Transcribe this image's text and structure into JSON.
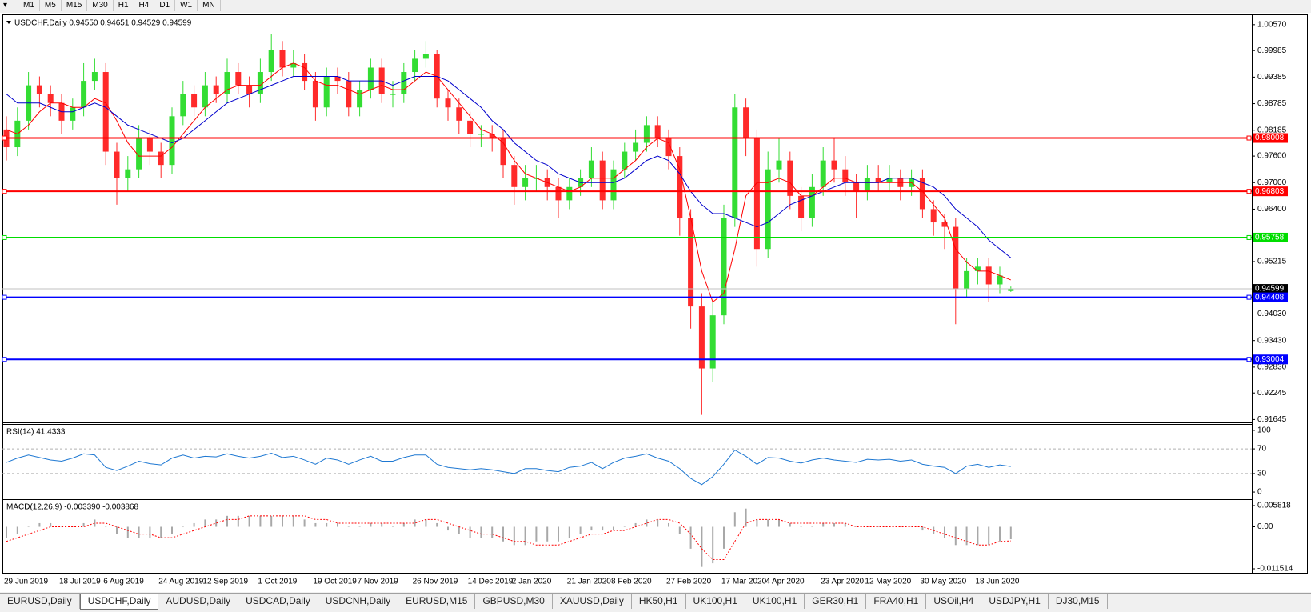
{
  "toolbar": {
    "timeframes": [
      "M1",
      "M5",
      "M15",
      "M30",
      "H1",
      "H4",
      "D1",
      "W1",
      "MN"
    ]
  },
  "chart_data": [
    {
      "type": "candlestick",
      "title": "USDCHF,Daily  0.94550 0.94651 0.94529 0.94599",
      "categories": [
        "29 Jun 2019",
        null,
        null,
        null,
        null,
        "18 Jul 2019",
        null,
        null,
        null,
        "6 Aug 2019",
        null,
        null,
        null,
        null,
        "24 Aug 2019",
        null,
        null,
        null,
        "12 Sep 2019",
        null,
        null,
        null,
        null,
        "1 Oct 2019",
        null,
        null,
        null,
        null,
        "19 Oct 2019",
        null,
        null,
        null,
        "7 Nov 2019",
        null,
        null,
        null,
        null,
        "26 Nov 2019",
        null,
        null,
        null,
        null,
        "14 Dec 2019",
        null,
        null,
        null,
        "2 Jan 2020",
        null,
        null,
        null,
        null,
        "21 Jan 2020",
        null,
        null,
        null,
        "8 Feb 2020",
        null,
        null,
        null,
        null,
        "27 Feb 2020",
        null,
        null,
        null,
        null,
        "17 Mar 2020",
        null,
        null,
        null,
        "4 Apr 2020",
        null,
        null,
        null,
        null,
        "23 Apr 2020",
        null,
        null,
        null,
        "12 May 2020",
        null,
        null,
        null,
        null,
        "30 May 2020",
        null,
        null,
        null,
        null,
        "18 Jun 2020",
        null,
        null,
        null
      ],
      "open": [
        0.982,
        0.978,
        0.984,
        0.992,
        0.99,
        0.988,
        0.984,
        0.987,
        0.993,
        0.995,
        0.977,
        0.971,
        0.973,
        0.98,
        0.977,
        0.974,
        0.985,
        0.99,
        0.987,
        0.992,
        0.99,
        0.995,
        0.992,
        0.99,
        0.995,
        1.0,
        0.996,
        0.997,
        0.993,
        0.987,
        0.994,
        0.993,
        0.987,
        0.991,
        0.996,
        0.99,
        0.99,
        0.995,
        0.998,
        0.999,
        0.989,
        0.987,
        0.984,
        0.981,
        0.981,
        0.98,
        0.974,
        0.969,
        0.971,
        0.971,
        0.969,
        0.966,
        0.969,
        0.971,
        0.975,
        0.966,
        0.973,
        0.977,
        0.979,
        0.983,
        0.98,
        0.976,
        0.962,
        0.942,
        0.928,
        0.94,
        0.962,
        0.987,
        0.98,
        0.955,
        0.973,
        0.975,
        0.967,
        0.962,
        0.969,
        0.975,
        0.973,
        0.97,
        0.968,
        0.971,
        0.97,
        0.971,
        0.969,
        0.971,
        0.964,
        0.961,
        0.96,
        0.946,
        0.95,
        0.951,
        0.947,
        0.9455
      ],
      "high": [
        0.985,
        0.987,
        0.995,
        0.994,
        0.992,
        0.99,
        0.989,
        0.997,
        0.998,
        0.997,
        0.979,
        0.976,
        0.983,
        0.982,
        0.979,
        0.987,
        0.993,
        0.992,
        0.995,
        0.994,
        0.998,
        0.997,
        0.994,
        0.998,
        1.0035,
        1.002,
        1.0,
        0.999,
        0.995,
        0.996,
        0.996,
        0.995,
        0.993,
        0.998,
        0.998,
        0.993,
        0.997,
        1.0,
        1.002,
        1.0,
        0.991,
        0.989,
        0.986,
        0.983,
        0.983,
        0.982,
        0.976,
        0.974,
        0.974,
        0.973,
        0.971,
        0.971,
        0.973,
        0.978,
        0.977,
        0.975,
        0.979,
        0.982,
        0.985,
        0.985,
        0.982,
        0.978,
        0.964,
        0.945,
        0.943,
        0.965,
        0.99,
        0.989,
        0.982,
        0.977,
        0.98,
        0.977,
        0.969,
        0.972,
        0.978,
        0.98,
        0.976,
        0.972,
        0.974,
        0.974,
        0.974,
        0.973,
        0.973,
        0.973,
        0.966,
        0.963,
        0.962,
        0.953,
        0.953,
        0.953,
        0.951,
        0.94651
      ],
      "low": [
        0.975,
        0.976,
        0.982,
        0.987,
        0.985,
        0.981,
        0.982,
        0.985,
        0.991,
        0.974,
        0.965,
        0.968,
        0.971,
        0.974,
        0.971,
        0.972,
        0.983,
        0.985,
        0.985,
        0.988,
        0.988,
        0.99,
        0.987,
        0.988,
        0.993,
        0.994,
        0.994,
        0.991,
        0.984,
        0.985,
        0.99,
        0.985,
        0.985,
        0.989,
        0.988,
        0.987,
        0.988,
        0.993,
        0.996,
        0.987,
        0.984,
        0.981,
        0.978,
        0.978,
        0.977,
        0.971,
        0.965,
        0.966,
        0.968,
        0.966,
        0.962,
        0.964,
        0.967,
        0.969,
        0.964,
        0.964,
        0.971,
        0.975,
        0.977,
        0.978,
        0.973,
        0.958,
        0.937,
        0.9175,
        0.925,
        0.938,
        0.96,
        0.976,
        0.951,
        0.953,
        0.97,
        0.964,
        0.959,
        0.96,
        0.967,
        0.97,
        0.967,
        0.962,
        0.966,
        0.968,
        0.968,
        0.966,
        0.967,
        0.962,
        0.958,
        0.955,
        0.938,
        0.944,
        0.947,
        0.943,
        0.945,
        0.94529
      ],
      "close": [
        0.978,
        0.984,
        0.992,
        0.99,
        0.988,
        0.984,
        0.987,
        0.993,
        0.995,
        0.977,
        0.971,
        0.973,
        0.98,
        0.977,
        0.974,
        0.985,
        0.99,
        0.987,
        0.992,
        0.99,
        0.995,
        0.992,
        0.99,
        0.995,
        1.0,
        0.996,
        0.997,
        0.993,
        0.987,
        0.994,
        0.993,
        0.987,
        0.991,
        0.996,
        0.99,
        0.99,
        0.995,
        0.998,
        0.999,
        0.989,
        0.987,
        0.984,
        0.981,
        0.981,
        0.98,
        0.974,
        0.969,
        0.971,
        0.971,
        0.969,
        0.966,
        0.969,
        0.971,
        0.975,
        0.966,
        0.973,
        0.977,
        0.979,
        0.983,
        0.98,
        0.976,
        0.962,
        0.942,
        0.928,
        0.94,
        0.962,
        0.987,
        0.98,
        0.955,
        0.973,
        0.975,
        0.967,
        0.962,
        0.969,
        0.975,
        0.973,
        0.97,
        0.968,
        0.971,
        0.97,
        0.971,
        0.969,
        0.971,
        0.964,
        0.961,
        0.96,
        0.946,
        0.95,
        0.951,
        0.947,
        0.949,
        0.94599
      ],
      "up_color": "#33dd33",
      "down_color": "#ff2a2a",
      "ma": [
        {
          "color": "#ff0000",
          "values": [
            0.982,
            0.981,
            0.983,
            0.986,
            0.988,
            0.988,
            0.987,
            0.987,
            0.989,
            0.988,
            0.984,
            0.979,
            0.976,
            0.976,
            0.976,
            0.978,
            0.981,
            0.984,
            0.987,
            0.989,
            0.991,
            0.992,
            0.992,
            0.992,
            0.994,
            0.996,
            0.997,
            0.996,
            0.993,
            0.992,
            0.992,
            0.991,
            0.99,
            0.991,
            0.992,
            0.991,
            0.991,
            0.993,
            0.995,
            0.994,
            0.991,
            0.988,
            0.985,
            0.982,
            0.981,
            0.979,
            0.975,
            0.972,
            0.971,
            0.97,
            0.969,
            0.968,
            0.969,
            0.971,
            0.971,
            0.971,
            0.973,
            0.975,
            0.978,
            0.98,
            0.979,
            0.973,
            0.962,
            0.95,
            0.943,
            0.945,
            0.955,
            0.967,
            0.97,
            0.97,
            0.971,
            0.97,
            0.967,
            0.967,
            0.969,
            0.971,
            0.971,
            0.97,
            0.97,
            0.97,
            0.97,
            0.97,
            0.97,
            0.968,
            0.965,
            0.962,
            0.955,
            0.952,
            0.95,
            0.95,
            0.949,
            0.948
          ]
        },
        {
          "color": "#0000cc",
          "values": [
            0.99,
            0.988,
            0.988,
            0.988,
            0.987,
            0.986,
            0.986,
            0.987,
            0.988,
            0.987,
            0.985,
            0.983,
            0.982,
            0.981,
            0.98,
            0.979,
            0.98,
            0.982,
            0.984,
            0.986,
            0.988,
            0.989,
            0.99,
            0.991,
            0.992,
            0.993,
            0.994,
            0.994,
            0.994,
            0.994,
            0.994,
            0.993,
            0.993,
            0.993,
            0.993,
            0.992,
            0.993,
            0.994,
            0.994,
            0.994,
            0.993,
            0.991,
            0.989,
            0.987,
            0.984,
            0.982,
            0.979,
            0.977,
            0.975,
            0.974,
            0.972,
            0.971,
            0.97,
            0.97,
            0.97,
            0.97,
            0.971,
            0.973,
            0.975,
            0.976,
            0.975,
            0.972,
            0.968,
            0.965,
            0.963,
            0.963,
            0.962,
            0.961,
            0.96,
            0.961,
            0.963,
            0.965,
            0.966,
            0.967,
            0.968,
            0.969,
            0.97,
            0.97,
            0.97,
            0.97,
            0.971,
            0.971,
            0.971,
            0.97,
            0.969,
            0.967,
            0.964,
            0.962,
            0.96,
            0.957,
            0.955,
            0.953
          ]
        }
      ],
      "hlines": [
        {
          "value": 0.98008,
          "color": "#ff0000"
        },
        {
          "value": 0.96803,
          "color": "#ff0000"
        },
        {
          "value": 0.95758,
          "color": "#00dd00"
        },
        {
          "value": 0.94408,
          "color": "#0000ff"
        },
        {
          "value": 0.93004,
          "color": "#0000ff"
        }
      ],
      "ylim": [
        0.9158,
        1.0073
      ],
      "yticks": [
        {
          "value": 1.0057,
          "label": "1.00570"
        },
        0.99985,
        0.99385,
        0.98785,
        0.98185,
        {
          "value": 0.976,
          "label": "0.97600"
        },
        {
          "value": 0.97,
          "label": "0.97000"
        },
        {
          "value": 0.964,
          "label": "0.96400"
        },
        0.95215,
        {
          "value": 0.9403,
          "label": "0.94030"
        },
        {
          "value": 0.9343,
          "label": "0.93430"
        },
        {
          "value": 0.9283,
          "label": "0.92830"
        },
        0.92245,
        0.91645
      ]
    },
    {
      "type": "line",
      "title": "RSI(14) 41.4333",
      "color": "#1e78d2",
      "values": [
        48,
        55,
        60,
        56,
        52,
        50,
        55,
        62,
        60,
        40,
        35,
        42,
        50,
        46,
        44,
        55,
        60,
        55,
        58,
        57,
        62,
        58,
        55,
        58,
        63,
        56,
        58,
        52,
        45,
        55,
        52,
        45,
        52,
        58,
        50,
        50,
        56,
        60,
        60,
        45,
        40,
        38,
        36,
        38,
        36,
        33,
        30,
        38,
        38,
        35,
        33,
        40,
        42,
        48,
        38,
        48,
        55,
        58,
        62,
        55,
        50,
        38,
        22,
        12,
        25,
        45,
        68,
        58,
        45,
        56,
        55,
        50,
        47,
        52,
        55,
        52,
        50,
        48,
        53,
        52,
        53,
        50,
        52,
        45,
        42,
        40,
        30,
        42,
        45,
        40,
        44,
        41.4333
      ],
      "levels": [
        30,
        70
      ],
      "ylim": [
        -9,
        109
      ],
      "yticks": [
        0,
        30,
        70,
        100
      ]
    },
    {
      "type": "macd",
      "title": "MACD(12,26,9) -0.003390 -0.003868",
      "color": "#a8a8a8",
      "values": [
        -0.003,
        -0.002,
        0.0,
        0.001,
        0.001,
        0.0,
        0.0,
        0.001,
        0.002,
        0.0,
        -0.002,
        -0.003,
        -0.003,
        -0.003,
        -0.003,
        -0.002,
        0.0,
        0.001,
        0.002,
        0.002,
        0.003,
        0.003,
        0.003,
        0.003,
        0.003,
        0.003,
        0.003,
        0.002,
        0.001,
        0.001,
        0.001,
        0.0,
        0.0,
        0.001,
        0.001,
        0.0,
        0.001,
        0.002,
        0.002,
        0.001,
        -0.001,
        -0.002,
        -0.003,
        -0.003,
        -0.003,
        -0.004,
        -0.005,
        -0.005,
        -0.004,
        -0.004,
        -0.004,
        -0.003,
        -0.002,
        -0.001,
        -0.001,
        -0.001,
        0.0,
        0.001,
        0.002,
        0.002,
        0.001,
        -0.002,
        -0.006,
        -0.011,
        -0.01,
        -0.006,
        0.004,
        0.005,
        0.002,
        0.002,
        0.002,
        0.001,
        0.0,
        0.0,
        0.001,
        0.001,
        0.001,
        0.0,
        0.0,
        0.0,
        0.0,
        0.0,
        0.0,
        -0.001,
        -0.002,
        -0.003,
        -0.005,
        -0.005,
        -0.005,
        -0.005,
        -0.004,
        -0.00339
      ],
      "signal": {
        "color": "#ff0000",
        "values": [
          -0.004,
          -0.003,
          -0.002,
          -0.001,
          0.0,
          0.0,
          0.0,
          0.0,
          0.001,
          0.001,
          0.0,
          -0.001,
          -0.002,
          -0.002,
          -0.003,
          -0.003,
          -0.002,
          -0.001,
          0.0,
          0.001,
          0.002,
          0.002,
          0.003,
          0.003,
          0.003,
          0.003,
          0.003,
          0.003,
          0.002,
          0.002,
          0.001,
          0.001,
          0.001,
          0.001,
          0.001,
          0.001,
          0.001,
          0.001,
          0.002,
          0.002,
          0.001,
          0.0,
          -0.001,
          -0.002,
          -0.002,
          -0.003,
          -0.004,
          -0.004,
          -0.005,
          -0.005,
          -0.005,
          -0.004,
          -0.003,
          -0.002,
          -0.002,
          -0.001,
          -0.001,
          0.0,
          0.001,
          0.002,
          0.002,
          0.001,
          -0.002,
          -0.006,
          -0.009,
          -0.009,
          -0.004,
          0.001,
          0.002,
          0.002,
          0.002,
          0.001,
          0.001,
          0.001,
          0.001,
          0.001,
          0.001,
          0.0,
          0.0,
          0.0,
          0.0,
          0.0,
          0.0,
          0.0,
          -0.001,
          -0.002,
          -0.003,
          -0.004,
          -0.005,
          -0.005,
          -0.004,
          -0.003868
        ]
      },
      "ylim": [
        -0.01261,
        0.00735
      ],
      "yticks": [
        0.005818,
        {
          "value": 0,
          "label": "0.00"
        },
        -0.011514
      ]
    }
  ],
  "tabs": {
    "items": [
      "EURUSD,Daily",
      "USDCHF,Daily",
      "AUDUSD,Daily",
      "USDCAD,Daily",
      "USDCNH,Daily",
      "EURUSD,M15",
      "GBPUSD,M30",
      "XAUUSD,Daily",
      "HK50,H1",
      "UK100,H1",
      "UK100,H1",
      "GER30,H1",
      "FRA40,H1",
      "USOil,H4",
      "USDJPY,H1",
      "DJ30,M15"
    ],
    "active": 1
  }
}
